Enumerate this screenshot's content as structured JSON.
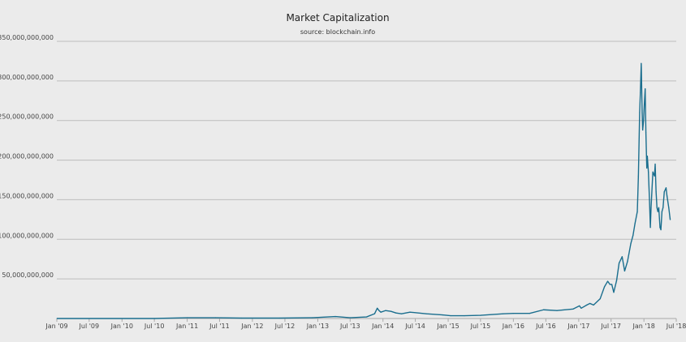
{
  "chart_data": {
    "type": "line",
    "title": "Market Capitalization",
    "subtitle": "source: blockchain.info",
    "xlabel": "",
    "ylabel": "",
    "grid": true,
    "legend": "none",
    "series_color": "#1a6e8e",
    "ylim": [
      0,
      350000000000
    ],
    "xlim": [
      "2009-01-01",
      "2018-07-01"
    ],
    "y_ticks": [
      {
        "value": 50000000000,
        "label": "50,000,000,000"
      },
      {
        "value": 100000000000,
        "label": "100,000,000,000"
      },
      {
        "value": 150000000000,
        "label": "150,000,000,000"
      },
      {
        "value": 200000000000,
        "label": "200,000,000,000"
      },
      {
        "value": 250000000000,
        "label": "250,000,000,000"
      },
      {
        "value": 300000000000,
        "label": "300,000,000,000"
      },
      {
        "value": 350000000000,
        "label": "350,000,000,000"
      }
    ],
    "x_ticks": [
      {
        "date": "2009-01-01",
        "label": "Jan '09"
      },
      {
        "date": "2009-07-01",
        "label": "Jul '09"
      },
      {
        "date": "2010-01-01",
        "label": "Jan '10"
      },
      {
        "date": "2010-07-01",
        "label": "Jul '10"
      },
      {
        "date": "2011-01-01",
        "label": "Jan '11"
      },
      {
        "date": "2011-07-01",
        "label": "Jul '11"
      },
      {
        "date": "2012-01-01",
        "label": "Jan '12"
      },
      {
        "date": "2012-07-01",
        "label": "Jul '12"
      },
      {
        "date": "2013-01-01",
        "label": "Jan '13"
      },
      {
        "date": "2013-07-01",
        "label": "Jul '13"
      },
      {
        "date": "2014-01-01",
        "label": "Jan '14"
      },
      {
        "date": "2014-07-01",
        "label": "Jul '14"
      },
      {
        "date": "2015-01-01",
        "label": "Jan '15"
      },
      {
        "date": "2015-07-01",
        "label": "Jul '15"
      },
      {
        "date": "2016-01-01",
        "label": "Jan '16"
      },
      {
        "date": "2016-07-01",
        "label": "Jul '16"
      },
      {
        "date": "2017-01-01",
        "label": "Jan '17"
      },
      {
        "date": "2017-07-01",
        "label": "Jul '17"
      },
      {
        "date": "2018-01-01",
        "label": "Jan '18"
      },
      {
        "date": "2018-07-01",
        "label": "Jul '18"
      }
    ],
    "series": [
      {
        "x": [
          "2009-01-03",
          "2010-07-01",
          "2011-01-01",
          "2011-06-08",
          "2011-11-01",
          "2012-06-01",
          "2012-12-01",
          "2013-04-10",
          "2013-07-01",
          "2013-10-01",
          "2013-11-15",
          "2013-11-30",
          "2013-12-10",
          "2013-12-20",
          "2014-01-15",
          "2014-02-15",
          "2014-03-15",
          "2014-04-15",
          "2014-06-01",
          "2014-09-01",
          "2014-12-01",
          "2015-01-15",
          "2015-04-01",
          "2015-07-01",
          "2015-11-05",
          "2016-01-01",
          "2016-04-01",
          "2016-06-18",
          "2016-09-01",
          "2016-12-01",
          "2017-01-05",
          "2017-01-15",
          "2017-02-15",
          "2017-03-05",
          "2017-03-25",
          "2017-05-01",
          "2017-05-25",
          "2017-06-12",
          "2017-06-25",
          "2017-07-05",
          "2017-07-16",
          "2017-08-01",
          "2017-08-15",
          "2017-09-01",
          "2017-09-15",
          "2017-10-01",
          "2017-10-20",
          "2017-11-01",
          "2017-11-12",
          "2017-11-25",
          "2017-12-01",
          "2017-12-08",
          "2017-12-12",
          "2017-12-17",
          "2017-12-22",
          "2017-12-25",
          "2017-12-30",
          "2018-01-03",
          "2018-01-08",
          "2018-01-12",
          "2018-01-17",
          "2018-01-20",
          "2018-01-26",
          "2018-02-01",
          "2018-02-06",
          "2018-02-10",
          "2018-02-20",
          "2018-03-01",
          "2018-03-05",
          "2018-03-10",
          "2018-03-15",
          "2018-03-20",
          "2018-03-25",
          "2018-04-01",
          "2018-04-06",
          "2018-04-12",
          "2018-04-18",
          "2018-04-25",
          "2018-05-05",
          "2018-05-10",
          "2018-05-20",
          "2018-05-28"
        ],
        "values": [
          0,
          0,
          1000000000,
          1000000000,
          500000000,
          500000000,
          1000000000,
          2500000000,
          1000000000,
          2000000000,
          6000000000,
          13000000000,
          10000000000,
          8000000000,
          10000000000,
          9000000000,
          7000000000,
          6000000000,
          8000000000,
          6000000000,
          4500000000,
          3500000000,
          3500000000,
          4000000000,
          6000000000,
          6500000000,
          6500000000,
          11000000000,
          10000000000,
          12000000000,
          16000000000,
          13000000000,
          17000000000,
          19000000000,
          17000000000,
          25000000000,
          40000000000,
          47000000000,
          43000000000,
          43000000000,
          33000000000,
          48000000000,
          70000000000,
          78000000000,
          60000000000,
          72000000000,
          95000000000,
          105000000000,
          120000000000,
          135000000000,
          180000000000,
          260000000000,
          285000000000,
          322000000000,
          260000000000,
          238000000000,
          250000000000,
          270000000000,
          290000000000,
          235000000000,
          190000000000,
          205000000000,
          185000000000,
          150000000000,
          115000000000,
          140000000000,
          185000000000,
          180000000000,
          195000000000,
          160000000000,
          140000000000,
          135000000000,
          140000000000,
          115000000000,
          112000000000,
          135000000000,
          140000000000,
          160000000000,
          165000000000,
          155000000000,
          140000000000,
          125000000000
        ]
      }
    ]
  }
}
